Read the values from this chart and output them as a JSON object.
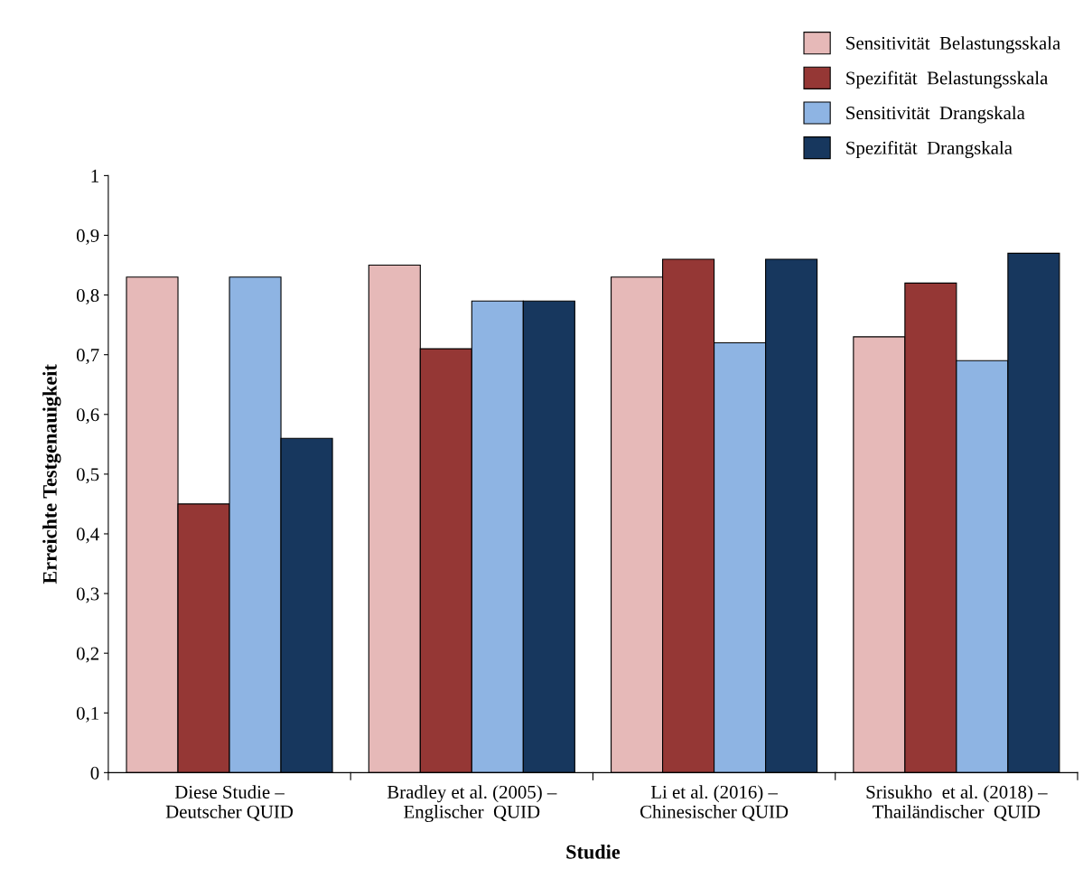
{
  "chart_data": {
    "type": "bar",
    "xlabel": "Studie",
    "ylabel": "Erreichte Testgenauigkeit",
    "categories": [
      "Diese Studie –\nDeutscher QUID",
      "Bradley et al. (2005) –\nEnglischer  QUID",
      "Li et al. (2016) –\nChinesischer QUID",
      "Srisukho  et al. (2018) –\nThailändischer  QUID"
    ],
    "series": [
      {
        "name": "Sensitivität  Belastungsskala",
        "color": "#e6b9b8",
        "values": [
          0.83,
          0.85,
          0.83,
          0.73
        ]
      },
      {
        "name": "Spezifität  Belastungsskala",
        "color": "#953735",
        "values": [
          0.45,
          0.71,
          0.86,
          0.82
        ]
      },
      {
        "name": "Sensitivität  Drangskala",
        "color": "#8eb4e3",
        "values": [
          0.83,
          0.79,
          0.72,
          0.69
        ]
      },
      {
        "name": "Spezifität  Drangskala",
        "color": "#17375e",
        "values": [
          0.56,
          0.79,
          0.86,
          0.87
        ]
      }
    ],
    "ylim": [
      0,
      1
    ],
    "yticks": [
      0,
      {
        "value": 0.1,
        "label": "0,1"
      },
      {
        "value": 0.2,
        "label": "0,2"
      },
      {
        "value": 0.3,
        "label": "0,3"
      },
      {
        "value": 0.4,
        "label": "0,4"
      },
      {
        "value": 0.5,
        "label": "0,5"
      },
      {
        "value": 0.6,
        "label": "0,6"
      },
      {
        "value": 0.7,
        "label": "0,7"
      },
      {
        "value": 0.8,
        "label": "0,8"
      },
      {
        "value": 0.9,
        "label": "0,9"
      },
      1
    ],
    "grid": false,
    "legend": "top right"
  }
}
